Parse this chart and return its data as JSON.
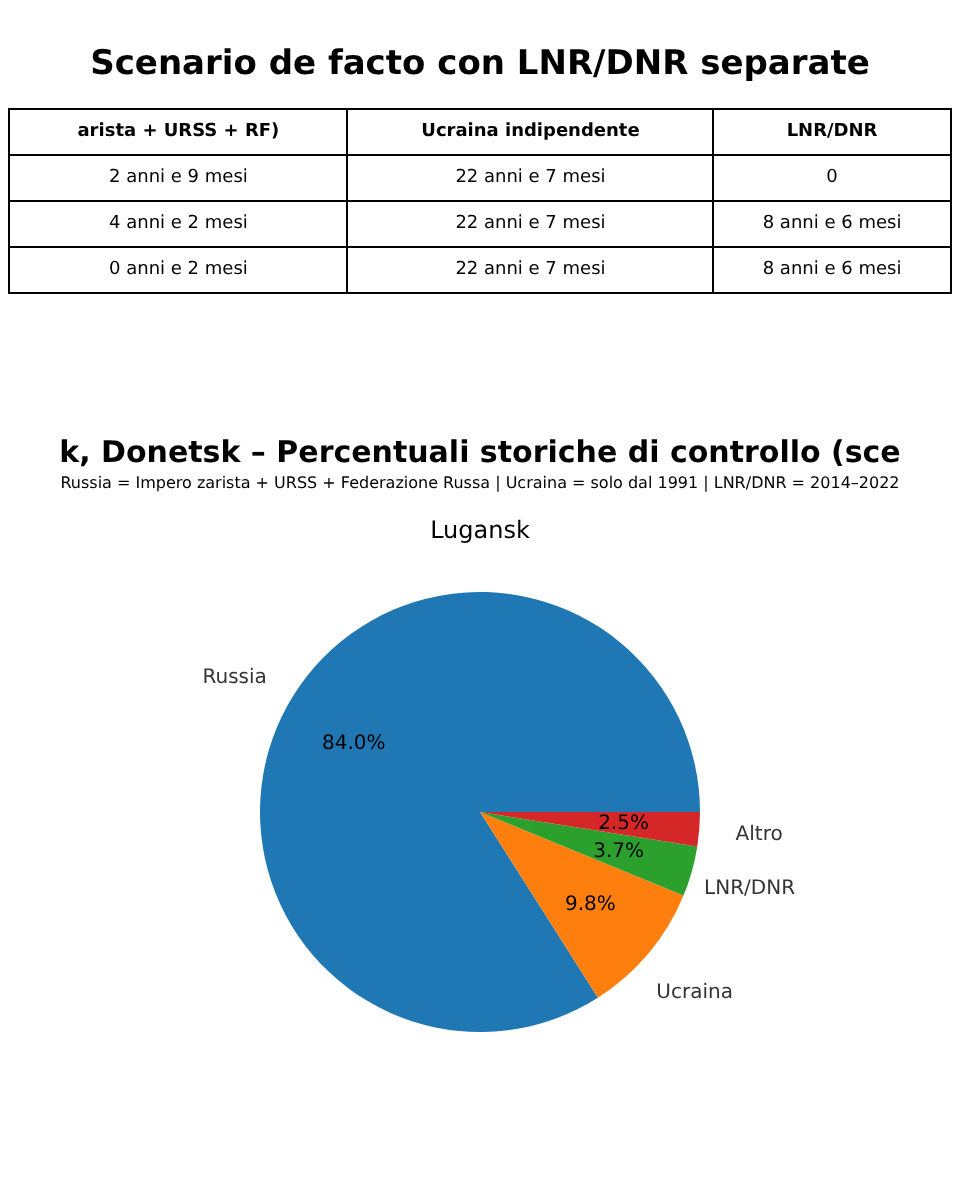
{
  "chart_data": [
    {
      "type": "other",
      "title": "Scenario de facto con LNR/DNR separate",
      "categories": [
        "arista + URSS + RF)",
        "Ucraina indipendente",
        "LNR/DNR"
      ],
      "annotations": [
        "2 anni e 9 mesi",
        "22 anni e 7 mesi",
        "0",
        "4 anni e 2 mesi",
        "22 anni e 7 mesi",
        "8 anni e 6 mesi",
        "0 anni e 2 mesi",
        "22 anni e 7 mesi",
        "8 anni e 6 mesi"
      ]
    },
    {
      "type": "other",
      "title": "k, Donetsk – Percentuali storiche di controllo (sce",
      "subtitle": "Russia = Impero zarista + URSS + Federazione Russa | Ucraina = solo dal 1991 | LNR/DNR = 2014–2022"
    },
    {
      "type": "pie",
      "title": "Lugansk",
      "categories": [
        "Russia",
        "Ucraina",
        "LNR/DNR",
        "Altro"
      ],
      "values": [
        84.0,
        9.8,
        3.7,
        2.5
      ],
      "colors": [
        "#1f77b4",
        "#ff7f0e",
        "#2ca02c",
        "#d62728"
      ],
      "value_labels": [
        "84.0%",
        "9.8%",
        "3.7%",
        "2.5%"
      ]
    }
  ]
}
